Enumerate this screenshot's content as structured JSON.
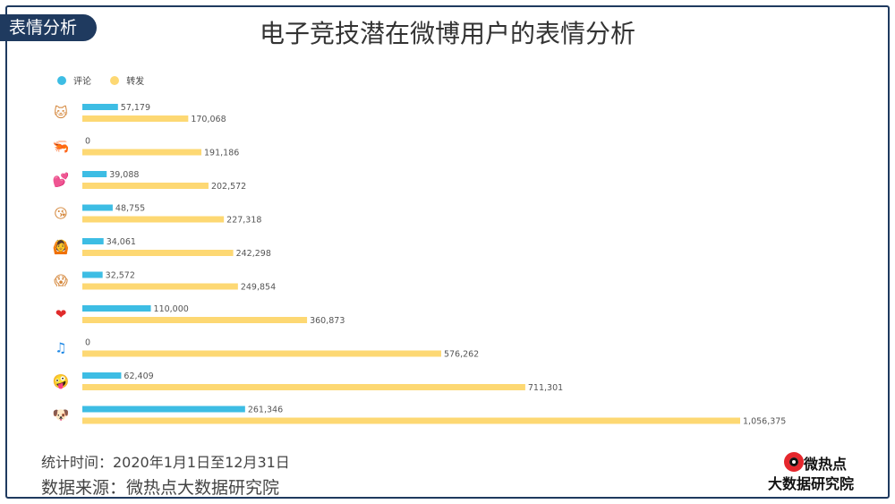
{
  "header": {
    "tag_label": "表情分析",
    "title": "电子竞技潜在微博用户的表情分析"
  },
  "legend": [
    {
      "label": "评论",
      "color": "#3dbde4"
    },
    {
      "label": "转发",
      "color": "#fdd873"
    }
  ],
  "chart_data": {
    "type": "bar",
    "orientation": "horizontal",
    "categories": [
      "cat-face",
      "shrimp",
      "hearts",
      "kiss-face",
      "dancing-figure",
      "shocked-face",
      "red-heart",
      "music-note",
      "doll-face",
      "doge-face"
    ],
    "category_icons": [
      "🐱",
      "🦐",
      "💕",
      "😘",
      "🙆",
      "😱",
      "❤",
      "♫",
      "🤪",
      "🐶"
    ],
    "series": [
      {
        "name": "评论",
        "color": "#3dbde4",
        "values": [
          57179,
          0,
          39088,
          48755,
          34061,
          32572,
          110000,
          0,
          62409,
          261346
        ],
        "labels": [
          "57,179",
          "0",
          "39,088",
          "48,755",
          "34,061",
          "32,572",
          "110,000",
          "0",
          "62,409",
          "261,346"
        ]
      },
      {
        "name": "转发",
        "color": "#fdd873",
        "values": [
          170068,
          191186,
          202572,
          227318,
          242298,
          249854,
          360873,
          576262,
          711301,
          1056375
        ],
        "labels": [
          "170,068",
          "191,186",
          "202,572",
          "227,318",
          "242,298",
          "249,854",
          "360,873",
          "576,262",
          "711,301",
          "1,056,375"
        ]
      }
    ],
    "xlim": [
      0,
      1056375
    ],
    "grid": false,
    "legend_position": "top-left"
  },
  "footer": {
    "period": "统计时间：2020年1月1日至12月31日",
    "source": "数据来源：微热点大数据研究院"
  },
  "logo": {
    "line1": "微热点",
    "line2": "大数据研究院"
  }
}
